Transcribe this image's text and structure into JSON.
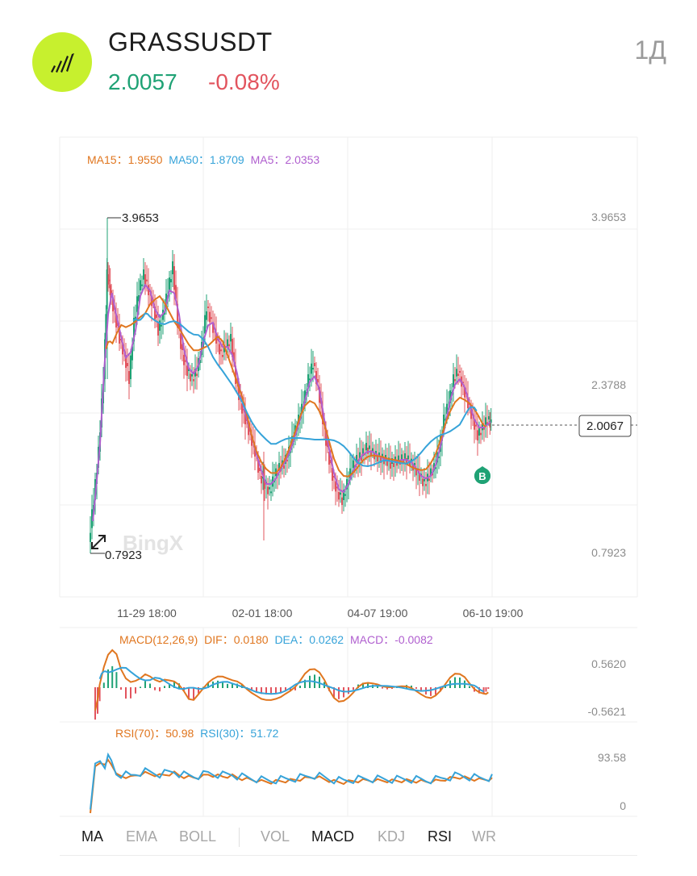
{
  "header": {
    "symbol": "GRASSUSDT",
    "price": "2.0057",
    "change": "-0.08%",
    "period": "1Д"
  },
  "colors": {
    "up": "#1fa275",
    "down": "#e2545e",
    "ma15": "#e0761f",
    "ma50": "#36a3d9",
    "ma5": "#b05fcf",
    "logo": "#c7f02e"
  },
  "main_chart": {
    "legend": {
      "ma15_label": "MA15：",
      "ma15_value": "1.9550",
      "ma50_label": "MA50：",
      "ma50_value": "1.8709",
      "ma5_label": "MA5：",
      "ma5_value": "2.0353"
    },
    "y_labels": [
      "3.9653",
      "2.3788",
      "0.7923"
    ],
    "x_labels": [
      "11-29 18:00",
      "02-01 18:00",
      "04-07 19:00",
      "06-10 19:00"
    ],
    "high_marker": "3.9653",
    "low_marker": "0.7923",
    "current_price_tag": "2.0067",
    "signal_badge": "B",
    "watermark": "BingX"
  },
  "macd_panel": {
    "label": "MACD(12,26,9)",
    "dif_label": "DIF：",
    "dif_value": "0.0180",
    "dea_label": "DEA：",
    "dea_value": "0.0262",
    "macd_label": "MACD：",
    "macd_value": "-0.0082",
    "y_labels": [
      "0.5620",
      "-0.5621"
    ]
  },
  "rsi_panel": {
    "rsi70_label": "RSI(70)：",
    "rsi70_value": "50.98",
    "rsi30_label": "RSI(30)：",
    "rsi30_value": "51.72",
    "y_labels": [
      "93.58",
      "0"
    ]
  },
  "indicator_tabs": {
    "ma": "MA",
    "ema": "EMA",
    "boll": "BOLL",
    "vol": "VOL",
    "macd": "MACD",
    "kdj": "KDJ",
    "rsi": "RSI",
    "wr": "WR"
  }
}
